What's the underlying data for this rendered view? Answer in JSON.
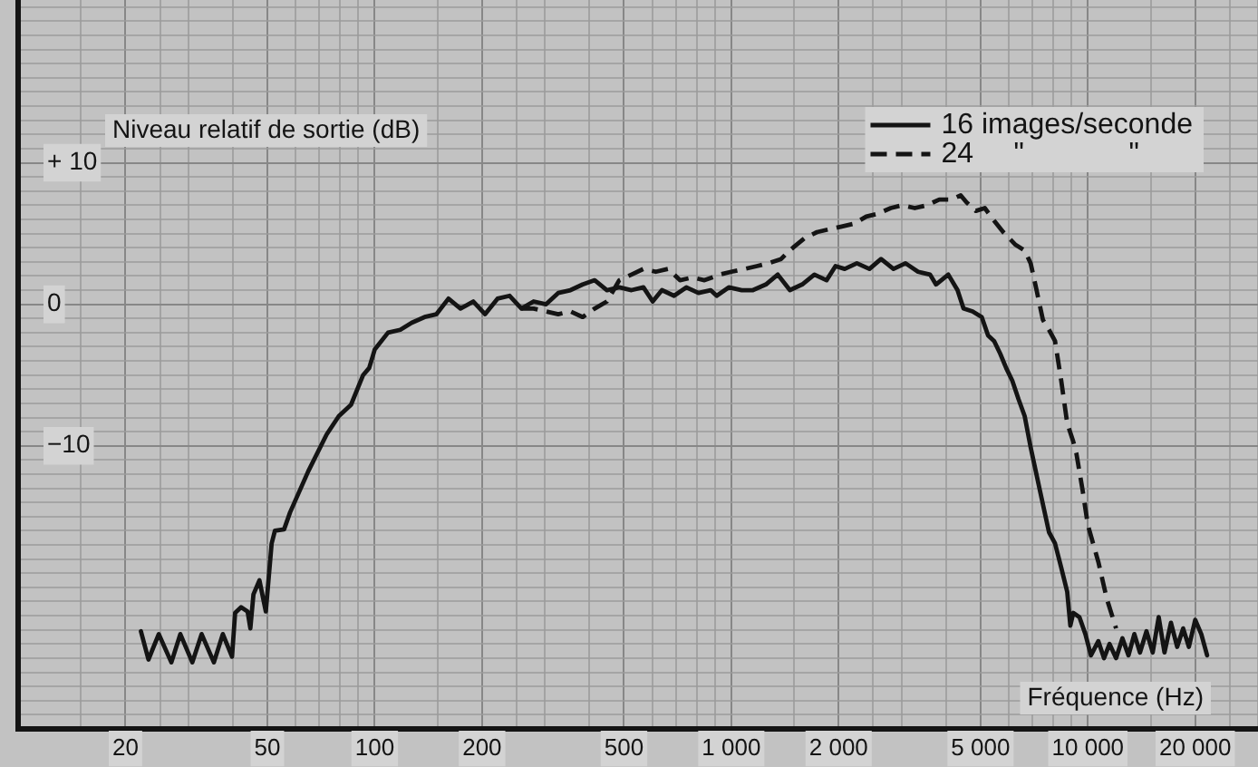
{
  "chart_data": {
    "type": "line",
    "log": "x",
    "grid": true,
    "legend": "top right",
    "marker": "none",
    "xlabel": "Fréquence (Hz)",
    "ylabel": "Niveau relatif de sortie (dB)",
    "xlim": [
      10,
      30000
    ],
    "ylim": [
      -30,
      21.5
    ],
    "xticks": [
      {
        "value": 10,
        "label": null
      },
      {
        "value": 15,
        "label": null
      },
      20,
      {
        "value": 25,
        "label": null
      },
      {
        "value": 30,
        "label": null
      },
      {
        "value": 40,
        "label": null
      },
      50,
      {
        "value": 60,
        "label": null
      },
      {
        "value": 70,
        "label": null
      },
      {
        "value": 80,
        "label": null
      },
      {
        "value": 90,
        "label": null
      },
      100,
      {
        "value": 150,
        "label": null
      },
      200,
      {
        "value": 250,
        "label": null
      },
      {
        "value": 300,
        "label": null
      },
      {
        "value": 400,
        "label": null
      },
      500,
      {
        "value": 600,
        "label": null
      },
      {
        "value": 700,
        "label": null
      },
      {
        "value": 800,
        "label": null
      },
      {
        "value": 900,
        "label": null
      },
      {
        "value": 1000,
        "label": "1 000"
      },
      {
        "value": 1500,
        "label": null
      },
      {
        "value": 2000,
        "label": "2 000"
      },
      {
        "value": 2500,
        "label": null
      },
      {
        "value": 3000,
        "label": null
      },
      {
        "value": 4000,
        "label": null
      },
      {
        "value": 5000,
        "label": "5 000"
      },
      {
        "value": 6000,
        "label": null
      },
      {
        "value": 7000,
        "label": null
      },
      {
        "value": 8000,
        "label": null
      },
      {
        "value": 9000,
        "label": null
      },
      {
        "value": 10000,
        "label": "10 000"
      },
      {
        "value": 15000,
        "label": null
      },
      {
        "value": 20000,
        "label": "20 000"
      },
      {
        "value": 25000,
        "label": null
      },
      {
        "value": 30000,
        "label": null
      }
    ],
    "yticks": [
      {
        "value": -30,
        "label": null
      },
      {
        "value": -29,
        "label": null
      },
      {
        "value": -28,
        "label": null
      },
      {
        "value": -27,
        "label": null
      },
      {
        "value": -26,
        "label": null
      },
      {
        "value": -25,
        "label": null
      },
      {
        "value": -24,
        "label": null
      },
      {
        "value": -23,
        "label": null
      },
      {
        "value": -22,
        "label": null
      },
      {
        "value": -21,
        "label": null
      },
      {
        "value": -20,
        "label": null
      },
      {
        "value": -19,
        "label": null
      },
      {
        "value": -18,
        "label": null
      },
      {
        "value": -17,
        "label": null
      },
      {
        "value": -16,
        "label": null
      },
      {
        "value": -15,
        "label": null
      },
      {
        "value": -14,
        "label": null
      },
      {
        "value": -13,
        "label": null
      },
      {
        "value": -12,
        "label": null
      },
      {
        "value": -11,
        "label": null
      },
      {
        "value": -10,
        "label": "−10"
      },
      {
        "value": -9,
        "label": null
      },
      {
        "value": -8,
        "label": null
      },
      {
        "value": -7,
        "label": null
      },
      {
        "value": -6,
        "label": null
      },
      {
        "value": -5,
        "label": null
      },
      {
        "value": -4,
        "label": null
      },
      {
        "value": -3,
        "label": null
      },
      {
        "value": -2,
        "label": null
      },
      {
        "value": -1,
        "label": null
      },
      0,
      {
        "value": 1,
        "label": null
      },
      {
        "value": 2,
        "label": null
      },
      {
        "value": 3,
        "label": null
      },
      {
        "value": 4,
        "label": null
      },
      {
        "value": 5,
        "label": null
      },
      {
        "value": 6,
        "label": null
      },
      {
        "value": 7,
        "label": null
      },
      {
        "value": 8,
        "label": null
      },
      {
        "value": 9,
        "label": null
      },
      {
        "value": 10,
        "label": "+ 10"
      },
      {
        "value": 11,
        "label": null
      },
      {
        "value": 12,
        "label": null
      },
      {
        "value": 13,
        "label": null
      },
      {
        "value": 14,
        "label": null
      },
      {
        "value": 15,
        "label": null
      },
      {
        "value": 16,
        "label": null
      },
      {
        "value": 17,
        "label": null
      },
      {
        "value": 18,
        "label": null
      },
      {
        "value": 19,
        "label": null
      },
      {
        "value": 20,
        "label": null
      },
      {
        "value": 21,
        "label": null
      }
    ],
    "series": [
      {
        "name": "16 images/seconde",
        "color": "#141414",
        "line_style": "solid",
        "x": [
          22.1,
          23.2,
          24.8,
          26.9,
          28.5,
          30.8,
          32.7,
          35.4,
          37.5,
          39.8,
          40.6,
          42.2,
          44,
          44.8,
          45.7,
          47.5,
          49.5,
          51.4,
          52.5,
          55.7,
          57.9,
          65.1,
          73.3,
          79.3,
          85.8,
          92.8,
          96.5,
          100,
          109,
          118,
          127,
          138,
          149,
          161,
          174,
          189,
          204,
          221,
          239,
          258,
          279,
          302,
          327,
          354,
          383,
          414,
          448,
          485,
          525,
          567,
          602,
          639,
          691,
          748,
          809,
          875,
          910,
          984,
          1070,
          1150,
          1250,
          1350,
          1460,
          1580,
          1710,
          1850,
          1960,
          2080,
          2250,
          2440,
          2630,
          2850,
          3080,
          3340,
          3610,
          3750,
          4060,
          4310,
          4480,
          4750,
          5040,
          5250,
          5460,
          5680,
          5900,
          6140,
          6390,
          6650,
          6910,
          7330,
          7780,
          8090,
          8420,
          8750,
          8930,
          9100,
          9470,
          9840,
          10200,
          10700,
          11100,
          11500,
          12000,
          12500,
          13000,
          13500,
          14000,
          14600,
          15200,
          15800,
          16400,
          17100,
          17800,
          18500,
          19200,
          20000,
          20800,
          21600
        ],
        "values": [
          -23.1,
          -25.1,
          -23.3,
          -25.3,
          -23.3,
          -25.3,
          -23.3,
          -25.3,
          -23.3,
          -24.9,
          -21.8,
          -21.4,
          -21.7,
          -22.9,
          -20.5,
          -19.5,
          -21.7,
          -16.9,
          -16.0,
          -15.9,
          -14.7,
          -11.8,
          -9.2,
          -7.9,
          -7.1,
          -5.0,
          -4.5,
          -3.2,
          -2.0,
          -1.8,
          -1.3,
          -0.9,
          -0.7,
          0.4,
          -0.3,
          0.2,
          -0.7,
          0.4,
          0.6,
          -0.3,
          0.2,
          0,
          0.8,
          1.0,
          1.4,
          1.7,
          1.0,
          1.2,
          1.0,
          1.2,
          0.2,
          1.0,
          0.6,
          1.2,
          0.8,
          1.0,
          0.6,
          1.2,
          1.0,
          1.0,
          1.4,
          2.1,
          1.0,
          1.4,
          2.1,
          1.7,
          2.7,
          2.5,
          2.9,
          2.5,
          3.2,
          2.5,
          2.9,
          2.3,
          2.1,
          1.4,
          2.1,
          1.0,
          -0.3,
          -0.5,
          -0.9,
          -2.2,
          -2.6,
          -3.5,
          -4.5,
          -5.4,
          -6.7,
          -7.9,
          -10.1,
          -13.1,
          -16.1,
          -16.9,
          -18.6,
          -20.3,
          -22.7,
          -21.8,
          -22.1,
          -23.3,
          -24.8,
          -23.8,
          -25.0,
          -24.0,
          -25.0,
          -23.6,
          -24.8,
          -23.3,
          -24.6,
          -23.1,
          -24.6,
          -22.1,
          -24.6,
          -22.5,
          -24.2,
          -22.9,
          -24.2,
          -22.3,
          -23.3,
          -24.8
        ]
      },
      {
        "name": "24     \"             \"",
        "color": "#141414",
        "line_style": "dashed",
        "x": [
          258,
          279,
          302,
          327,
          354,
          383,
          414,
          448,
          485,
          525,
          567,
          614,
          665,
          718,
          778,
          841,
          928,
          1000,
          1090,
          1180,
          1270,
          1380,
          1430,
          1490,
          1610,
          1740,
          1880,
          2040,
          2210,
          2390,
          2580,
          2800,
          3020,
          3270,
          3540,
          3830,
          4140,
          4400,
          4570,
          4850,
          5140,
          5460,
          5790,
          6270,
          6650,
          6910,
          7180,
          7480,
          7780,
          8090,
          8420,
          8750,
          9100,
          9280,
          9660,
          10000,
          10700,
          11300,
          12000
        ],
        "values": [
          -0.3,
          -0.3,
          -0.5,
          -0.7,
          -0.5,
          -0.9,
          -0.3,
          0.2,
          1.7,
          2.1,
          2.5,
          2.3,
          2.5,
          1.7,
          1.9,
          1.7,
          2.1,
          2.3,
          2.5,
          2.7,
          2.9,
          3.2,
          3.6,
          4.0,
          4.7,
          5.1,
          5.3,
          5.5,
          5.7,
          6.2,
          6.4,
          6.8,
          7.0,
          6.8,
          7.0,
          7.4,
          7.4,
          7.7,
          7.2,
          6.6,
          6.8,
          5.9,
          5.1,
          4.2,
          3.8,
          2.9,
          1.0,
          -1.1,
          -1.8,
          -2.6,
          -5.4,
          -8.4,
          -9.7,
          -10.5,
          -13.1,
          -15.6,
          -18.2,
          -20.8,
          -22.9
        ]
      }
    ]
  }
}
